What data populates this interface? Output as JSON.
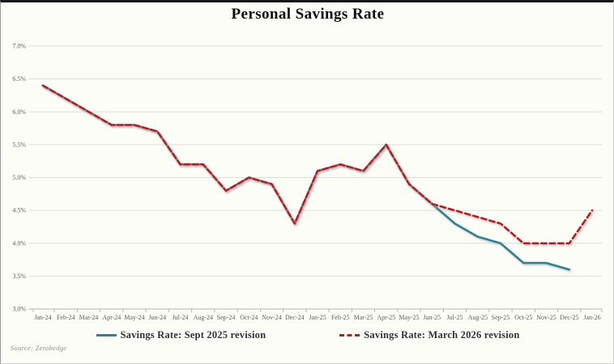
{
  "source": "Source: Zerohedge",
  "colors": {
    "background": "#fdfdf8",
    "top_border": "#161616",
    "gridline": "#dcdcdc",
    "axis": "#b3b3b3",
    "tick_label": "#5c5c5c",
    "title": "#0e0e0e",
    "legend_text": "#2e3338",
    "series_teal": "#31808B",
    "series_red": "#A8242A"
  },
  "chart_data": {
    "type": "line",
    "title": "Personal Savings Rate",
    "xlabel": "",
    "ylabel": "",
    "grid": "horizontal",
    "legend_position": "bottom",
    "y_min": 3.0,
    "y_max": 7.0,
    "y_step": 0.5,
    "y_tick_labels": [
      "7.0%",
      "6.5%",
      "6.0%",
      "5.5%",
      "5.0%",
      "4.5%",
      "4.0%",
      "3.5%",
      "3.0%"
    ],
    "x_labels": [
      "Jan-24",
      "Feb-24",
      "Mar-24",
      "Apr-24",
      "May-24",
      "Jun-24",
      "Jul-24",
      "Aug-24",
      "Sep-24",
      "Oct-24",
      "Nov-24",
      "Dec-24",
      "Jan-25",
      "Feb-25",
      "Mar-25",
      "Apr-25",
      "May-25",
      "Jun-25",
      "Jul-25",
      "Aug-25",
      "Sep-25",
      "Oct-25",
      "Nov-25",
      "Dec-25",
      "Jan-26"
    ],
    "series": [
      {
        "name": "Savings Rate: Sept 2025 revision",
        "color": "#31808B",
        "line_style": "solid",
        "values": [
          6.4,
          6.2,
          6.0,
          5.8,
          5.8,
          5.7,
          5.2,
          5.2,
          4.8,
          5.0,
          4.9,
          4.3,
          5.1,
          5.2,
          5.1,
          5.5,
          4.9,
          4.6,
          4.3,
          4.1,
          4.0,
          3.7,
          3.7,
          3.6,
          null
        ]
      },
      {
        "name": "Savings Rate: March 2026 revision",
        "color": "#A8242A",
        "line_style": "dashed",
        "values": [
          6.4,
          6.2,
          6.0,
          5.8,
          5.8,
          5.7,
          5.2,
          5.2,
          4.8,
          5.0,
          4.9,
          4.3,
          5.1,
          5.2,
          5.1,
          5.5,
          4.9,
          4.6,
          4.5,
          4.4,
          4.3,
          4.0,
          4.0,
          4.0,
          4.5
        ]
      }
    ]
  }
}
